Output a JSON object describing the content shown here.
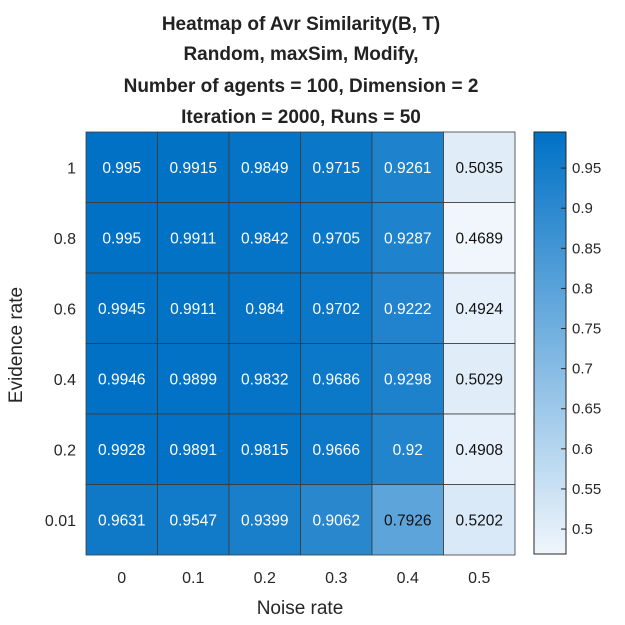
{
  "chart_data": {
    "type": "heatmap",
    "title": [
      "Heatmap of Avr Similarity(B, T)",
      "Random, maxSim, Modify,",
      "Number of agents = 100, Dimension = 2",
      "Iteration = 2000, Runs = 50"
    ],
    "xlabel": "Noise rate",
    "ylabel": "Evidence rate",
    "x_categories": [
      "0",
      "0.1",
      "0.2",
      "0.3",
      "0.4",
      "0.5"
    ],
    "y_categories": [
      "1",
      "0.8",
      "0.6",
      "0.4",
      "0.2",
      "0.01"
    ],
    "values": [
      [
        "0.995",
        "0.9915",
        "0.9849",
        "0.9715",
        "0.9261",
        "0.5035"
      ],
      [
        "0.995",
        "0.9911",
        "0.9842",
        "0.9705",
        "0.9287",
        "0.4689"
      ],
      [
        "0.9945",
        "0.9911",
        "0.984",
        "0.9702",
        "0.9222",
        "0.4924"
      ],
      [
        "0.9946",
        "0.9899",
        "0.9832",
        "0.9686",
        "0.9298",
        "0.5029"
      ],
      [
        "0.9928",
        "0.9891",
        "0.9815",
        "0.9666",
        "0.92",
        "0.4908"
      ],
      [
        "0.9631",
        "0.9547",
        "0.9399",
        "0.9062",
        "0.7926",
        "0.5202"
      ]
    ],
    "colorbar": {
      "range": [
        0.4689,
        0.995
      ],
      "ticks": [
        "0.5",
        "0.55",
        "0.6",
        "0.65",
        "0.7",
        "0.75",
        "0.8",
        "0.85",
        "0.9",
        "0.95"
      ],
      "color_low": "#f0f6fc",
      "color_high": "#0071c5"
    },
    "grid": true
  }
}
